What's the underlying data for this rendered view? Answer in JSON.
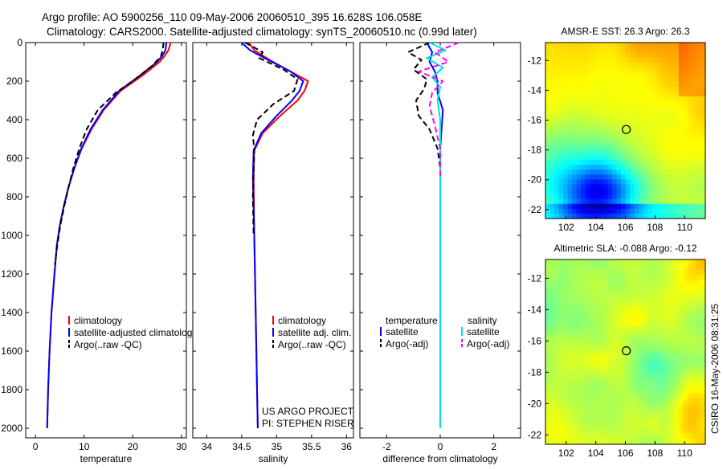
{
  "header": {
    "line1": "Argo profile: AO 5900256_110 09-May-2006 20060510_395 16.628S 106.058E",
    "line2": "Climatology: CARS2000. Satellite-adjusted climatology: synTS_20060510.nc (0.99d later)"
  },
  "footer_stamp": "CSIRO 16-May-2006 08:31:25",
  "colors": {
    "climatology": "#ff0000",
    "satellite": "#0000ff",
    "argo": "#000000",
    "diff_sal_sat": "#00e0e0",
    "diff_sal_argo": "#ff00ff",
    "marker": "#000000"
  },
  "chart_data": [
    {
      "id": "temperature",
      "type": "line",
      "xlabel": "temperature",
      "ylabel": "",
      "xlim": [
        -2,
        31
      ],
      "ylim": [
        2050,
        0
      ],
      "xticks": [
        "0",
        "10",
        "20",
        "30"
      ],
      "xtick_values": [
        0,
        10,
        20,
        30
      ],
      "yticks": [
        "0",
        "200",
        "400",
        "600",
        "800",
        "1000",
        "1200",
        "1400",
        "1600",
        "1800",
        "2000"
      ],
      "ytick_values": [
        0,
        200,
        400,
        600,
        800,
        1000,
        1200,
        1400,
        1600,
        1800,
        2000
      ],
      "legend": [
        "climatology",
        "satellite-adjusted climatolog",
        "Argo(..raw -QC)"
      ],
      "series": [
        {
          "name": "climatology",
          "color": "#ff0000",
          "dash": "solid",
          "x": [
            27.8,
            27.3,
            26.5,
            25.5,
            22,
            17.5,
            14,
            11.5,
            9.5,
            8,
            6.8,
            5.8,
            5,
            4.4,
            3.9,
            3.3,
            2.9,
            2.6,
            2.4
          ],
          "y": [
            0,
            40,
            70,
            100,
            170,
            250,
            350,
            450,
            550,
            650,
            750,
            850,
            950,
            1050,
            1200,
            1400,
            1600,
            1800,
            2000
          ]
        },
        {
          "name": "satellite-adjusted climatolog",
          "color": "#0000ff",
          "dash": "solid",
          "x": [
            26.9,
            26.7,
            26,
            25,
            21.5,
            17.2,
            13.8,
            11.3,
            9.4,
            8,
            6.8,
            5.8,
            5,
            4.4,
            3.9,
            3.3,
            2.9,
            2.6,
            2.4
          ],
          "y": [
            0,
            40,
            70,
            100,
            170,
            250,
            350,
            450,
            550,
            650,
            750,
            850,
            950,
            1050,
            1200,
            1400,
            1600,
            1800,
            2000
          ]
        },
        {
          "name": "Argo(..raw -QC)",
          "color": "#000000",
          "dash": "dashed",
          "x": [
            26.3,
            26.2,
            25.8,
            24,
            20.5,
            16.5,
            12.8,
            10.5,
            9,
            7.8,
            6.8,
            5.9,
            5.1,
            4.5,
            4
          ],
          "y": [
            0,
            30,
            70,
            120,
            190,
            260,
            350,
            450,
            550,
            650,
            750,
            850,
            950,
            1050,
            1150
          ]
        }
      ]
    },
    {
      "id": "salinity",
      "type": "line",
      "xlabel": "salinity",
      "ylabel": "",
      "xlim": [
        33.8,
        36.1
      ],
      "ylim": [
        2050,
        0
      ],
      "xticks": [
        "34",
        "34.5",
        "35",
        "35.5",
        "36"
      ],
      "xtick_values": [
        34,
        34.5,
        35,
        35.5,
        36
      ],
      "legend": [
        "climatology",
        "satellite adj. clim.",
        "Argo(..raw -QC)"
      ],
      "note": [
        "US ARGO PROJECT",
        "PI: STEPHEN RISER"
      ],
      "series": [
        {
          "name": "climatology",
          "color": "#ff0000",
          "dash": "solid",
          "x": [
            34.6,
            34.68,
            34.9,
            35.2,
            35.45,
            35.4,
            35.3,
            35.05,
            34.8,
            34.68,
            34.67,
            34.68,
            34.7,
            34.72,
            34.73
          ],
          "y": [
            0,
            40,
            90,
            150,
            200,
            250,
            300,
            380,
            470,
            560,
            700,
            1000,
            1400,
            1800,
            2000
          ]
        },
        {
          "name": "satellite adj. clim.",
          "color": "#0000ff",
          "dash": "solid",
          "x": [
            34.5,
            34.62,
            34.88,
            35.2,
            35.38,
            35.33,
            35.22,
            35.0,
            34.78,
            34.67,
            34.66,
            34.68,
            34.7,
            34.72,
            34.73
          ],
          "y": [
            0,
            40,
            90,
            150,
            200,
            250,
            300,
            380,
            470,
            560,
            700,
            1000,
            1400,
            1800,
            2000
          ]
        },
        {
          "name": "Argo(..raw -QC)",
          "color": "#000000",
          "dash": "dashed",
          "x": [
            34.55,
            34.8,
            34.75,
            35.1,
            35.3,
            35.25,
            34.95,
            34.72,
            34.66,
            34.68,
            34.66,
            34.67
          ],
          "y": [
            0,
            50,
            80,
            140,
            190,
            250,
            320,
            400,
            480,
            560,
            800,
            1000
          ]
        }
      ]
    },
    {
      "id": "difference",
      "type": "line",
      "xlabel": "difference from climatology",
      "ylabel": "",
      "xlim": [
        -3,
        3
      ],
      "ylim": [
        2050,
        0
      ],
      "xticks": [
        "-2",
        "0",
        "2"
      ],
      "xtick_values": [
        -2,
        0,
        2
      ],
      "legend_left_title": "temperature",
      "legend_right_title": "salinity",
      "legend": [
        "satellite",
        "Argo(-adj)",
        "satellite",
        "Argo(-adj)"
      ],
      "series": [
        {
          "name": "temperature satellite",
          "color": "#0000ff",
          "dash": "solid",
          "x": [
            -0.5,
            -0.3,
            -0.4,
            -0.2,
            -0.1,
            -0.1,
            0.1,
            0.05,
            0,
            0,
            0,
            0
          ],
          "y": [
            0,
            50,
            100,
            150,
            200,
            260,
            350,
            450,
            550,
            700,
            1000,
            1500
          ]
        },
        {
          "name": "temperature Argo(-adj)",
          "color": "#000000",
          "dash": "dashed",
          "x": [
            -0.4,
            -1.2,
            -0.7,
            -1.0,
            -0.5,
            -0.6,
            -0.9,
            -0.8,
            -0.4,
            -0.1,
            0
          ],
          "y": [
            0,
            50,
            90,
            140,
            190,
            240,
            300,
            380,
            450,
            550,
            650
          ]
        },
        {
          "name": "salinity satellite",
          "color": "#00e0e0",
          "dash": "solid",
          "x": [
            -0.4,
            0.2,
            -0.5,
            0.1,
            -0.3,
            0,
            -0.1,
            0,
            0,
            0,
            0
          ],
          "y": [
            0,
            40,
            80,
            130,
            180,
            230,
            300,
            400,
            600,
            1000,
            2000
          ]
        },
        {
          "name": "salinity Argo(-adj)",
          "color": "#ff00ff",
          "dash": "dashed",
          "x": [
            0.7,
            -0.2,
            0.3,
            -0.8,
            0.1,
            -0.3,
            -0.4,
            -0.2,
            0,
            0
          ],
          "y": [
            0,
            50,
            100,
            150,
            200,
            260,
            330,
            430,
            550,
            700
          ]
        }
      ]
    },
    {
      "id": "sst-map",
      "type": "heatmap",
      "title": "AMSR-E SST: 26.3 Argo: 26.3",
      "xlim": [
        100.6,
        111.4
      ],
      "ylim": [
        -22.6,
        -10.8
      ],
      "xticks": [
        "102",
        "104",
        "106",
        "108",
        "110"
      ],
      "xtick_values": [
        102,
        104,
        106,
        108,
        110
      ],
      "yticks": [
        "-12",
        "-14",
        "-16",
        "-18",
        "-20",
        "-22"
      ],
      "ytick_values": [
        -12,
        -14,
        -16,
        -18,
        -20,
        -22
      ],
      "marker": {
        "lon": 106.06,
        "lat": -16.63
      }
    },
    {
      "id": "sla-map",
      "type": "heatmap",
      "title": "Altimetric SLA: -0.088 Argo: -0.12",
      "xlim": [
        100.6,
        111.4
      ],
      "ylim": [
        -22.6,
        -10.8
      ],
      "xticks": [
        "102",
        "104",
        "106",
        "108",
        "110"
      ],
      "xtick_values": [
        102,
        104,
        106,
        108,
        110
      ],
      "yticks": [
        "-12",
        "-14",
        "-16",
        "-18",
        "-20",
        "-22"
      ],
      "ytick_values": [
        -12,
        -14,
        -16,
        -18,
        -20,
        -22
      ],
      "marker": {
        "lon": 106.06,
        "lat": -16.63
      }
    }
  ]
}
